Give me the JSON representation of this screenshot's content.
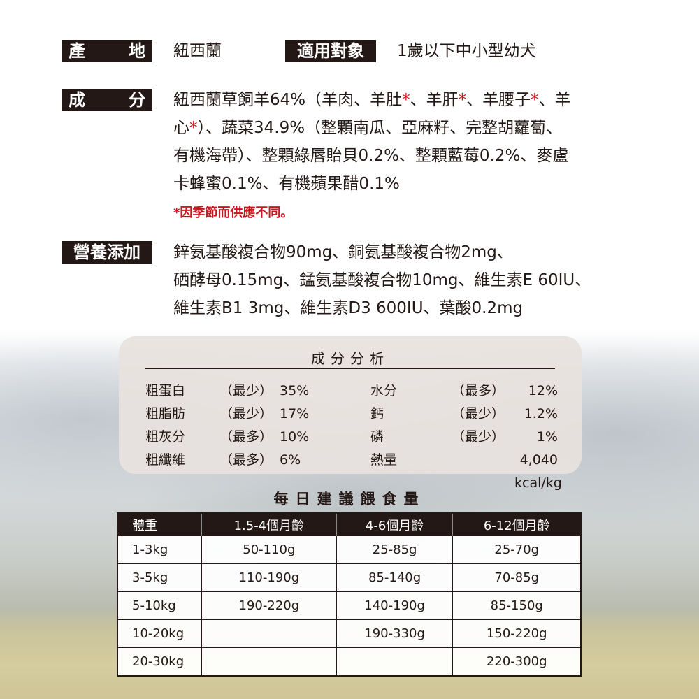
{
  "origin": {
    "label": "產　地",
    "label_chars": [
      "產",
      "地"
    ],
    "value": "紐西蘭"
  },
  "target": {
    "label": "適用對象",
    "value": "1歲以下中小型幼犬"
  },
  "ingredients": {
    "label_chars": [
      "成",
      "分"
    ],
    "lines": [
      [
        {
          "t": "紐西蘭草飼羊64%（羊肉、羊肚"
        },
        {
          "t": "*",
          "red": true
        },
        {
          "t": "、羊肝"
        },
        {
          "t": "*",
          "red": true
        },
        {
          "t": "、羊腰子"
        },
        {
          "t": "*",
          "red": true
        },
        {
          "t": "、羊"
        }
      ],
      [
        {
          "t": "心"
        },
        {
          "t": "*",
          "red": true
        },
        {
          "t": "）、蔬菜34.9%（整顆南瓜、亞麻籽、完整胡蘿蔔、"
        }
      ],
      [
        {
          "t": "有機海帶）、整顆綠唇貽貝0.2%、整顆藍莓0.2%、麥盧"
        }
      ],
      [
        {
          "t": "卡蜂蜜0.1%、有機蘋果醋0.1%"
        }
      ]
    ],
    "note": "*因季節而供應不同。"
  },
  "supplements": {
    "label": "營養添加",
    "lines": [
      "鋅氨基酸複合物90mg、銅氨基酸複合物2mg、",
      "硒酵母0.15mg、錳氨基酸複合物10mg、維生素E 60IU、",
      "維生素B1 3mg、維生素D3 600IU、葉酸0.2mg"
    ]
  },
  "analysis": {
    "title": "成分分析",
    "rows": [
      [
        "粗蛋白",
        "（最少）",
        "35%",
        "水分",
        "（最多）",
        "12%"
      ],
      [
        "粗脂肪",
        "（最少）",
        "17%",
        "鈣",
        "（最少）",
        "1.2%"
      ],
      [
        "粗灰分",
        "（最多）",
        "10%",
        "磷",
        "（最少）",
        "1%"
      ],
      [
        "粗纖維",
        "（最多）",
        "6%",
        "熱量",
        "",
        "4,040 kcal/kg"
      ]
    ]
  },
  "feeding": {
    "title": "每日建議餵食量",
    "headers": [
      "體重",
      "1.5-4個月齡",
      "4-6個月齡",
      "6-12個月齡"
    ],
    "rows": [
      [
        "1-3kg",
        "50-110g",
        "25-85g",
        "25-70g"
      ],
      [
        "3-5kg",
        "110-190g",
        "85-140g",
        "70-85g"
      ],
      [
        "5-10kg",
        "190-220g",
        "140-190g",
        "85-150g"
      ],
      [
        "10-20kg",
        "",
        "190-330g",
        "150-220g"
      ],
      [
        "20-30kg",
        "",
        "",
        "220-300g"
      ]
    ]
  },
  "colors": {
    "dark": "#231815",
    "accent_red": "#c9151e"
  }
}
